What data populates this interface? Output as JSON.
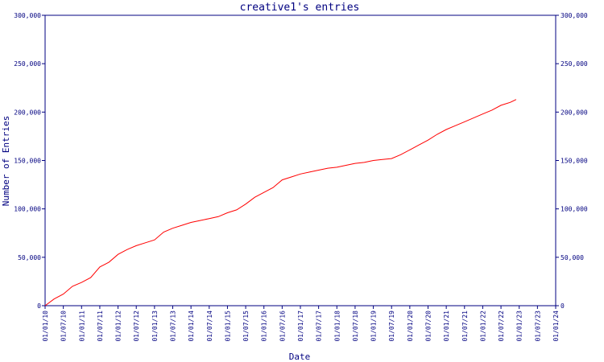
{
  "chart_data": {
    "type": "line",
    "title": "creative1's entries",
    "xlabel": "Date",
    "ylabel": "Number of Entries",
    "ylim": [
      0,
      300000
    ],
    "y_ticks": [
      0,
      50000,
      100000,
      150000,
      200000,
      250000,
      300000
    ],
    "y_tick_labels": [
      "0",
      "50,000",
      "100,000",
      "150,000",
      "200,000",
      "250,000",
      "300,000"
    ],
    "x_tick_labels": [
      "01/01/10",
      "01/07/10",
      "01/01/11",
      "01/07/11",
      "01/01/12",
      "01/07/12",
      "01/01/13",
      "01/07/13",
      "01/01/14",
      "01/07/14",
      "01/01/15",
      "01/07/15",
      "01/01/16",
      "01/07/16",
      "01/01/17",
      "01/07/17",
      "01/01/18",
      "01/07/18",
      "01/01/19",
      "01/07/19",
      "01/01/20",
      "01/07/20",
      "01/01/21",
      "01/07/21",
      "01/01/22",
      "01/07/22",
      "01/01/23",
      "01/07/23",
      "01/01/24"
    ],
    "grid": false,
    "line_color": "#ff0000",
    "axis_color": "#000080",
    "series": [
      {
        "points": [
          [
            "01/01/10",
            0
          ],
          [
            "01/04/10",
            7000
          ],
          [
            "01/07/10",
            12000
          ],
          [
            "01/10/10",
            20000
          ],
          [
            "01/01/11",
            24000
          ],
          [
            "01/04/11",
            29000
          ],
          [
            "01/07/11",
            40000
          ],
          [
            "01/10/11",
            45000
          ],
          [
            "01/01/12",
            53000
          ],
          [
            "01/04/12",
            58000
          ],
          [
            "01/07/12",
            62000
          ],
          [
            "01/10/12",
            65000
          ],
          [
            "01/01/13",
            68000
          ],
          [
            "01/04/13",
            76000
          ],
          [
            "01/07/13",
            80000
          ],
          [
            "01/10/13",
            83000
          ],
          [
            "01/01/14",
            86000
          ],
          [
            "01/04/14",
            88000
          ],
          [
            "01/07/14",
            90000
          ],
          [
            "01/10/14",
            92000
          ],
          [
            "01/01/15",
            96000
          ],
          [
            "01/04/15",
            99000
          ],
          [
            "01/07/15",
            105000
          ],
          [
            "01/10/15",
            112000
          ],
          [
            "01/01/16",
            117000
          ],
          [
            "01/04/16",
            122000
          ],
          [
            "01/07/16",
            130000
          ],
          [
            "01/10/16",
            133000
          ],
          [
            "01/01/17",
            136000
          ],
          [
            "01/04/17",
            138000
          ],
          [
            "01/07/17",
            140000
          ],
          [
            "01/10/17",
            142000
          ],
          [
            "01/01/18",
            143000
          ],
          [
            "01/04/18",
            145000
          ],
          [
            "01/07/18",
            147000
          ],
          [
            "01/10/18",
            148000
          ],
          [
            "01/01/19",
            150000
          ],
          [
            "01/04/19",
            151000
          ],
          [
            "01/07/19",
            152000
          ],
          [
            "01/10/19",
            156000
          ],
          [
            "01/01/20",
            161000
          ],
          [
            "01/04/20",
            166000
          ],
          [
            "01/07/20",
            171000
          ],
          [
            "01/10/20",
            177000
          ],
          [
            "01/01/21",
            182000
          ],
          [
            "01/04/21",
            186000
          ],
          [
            "01/07/21",
            190000
          ],
          [
            "01/10/21",
            194000
          ],
          [
            "01/01/22",
            198000
          ],
          [
            "01/04/22",
            202000
          ],
          [
            "01/07/22",
            207000
          ],
          [
            "01/10/22",
            210000
          ],
          [
            "01/12/22",
            213000
          ]
        ]
      }
    ]
  }
}
